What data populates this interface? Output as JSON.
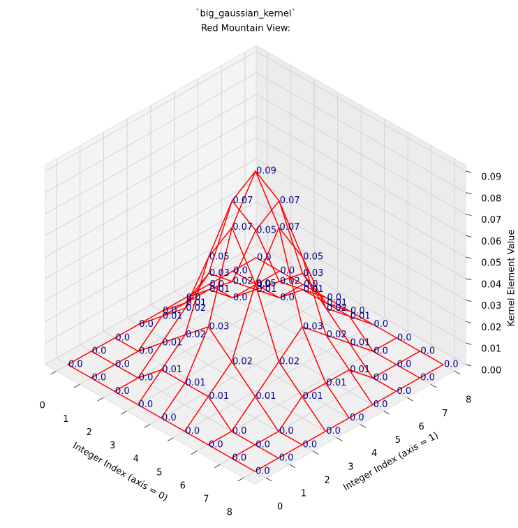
{
  "chart_data": {
    "type": "wireframe",
    "title": [
      "`big_gaussian_kernel`",
      "Red Mountain View:"
    ],
    "xlabel": "Integer Index (axis = 0)",
    "ylabel": "Integer Index (axis = 1)",
    "zlabel": "Kernel Element Value",
    "color": "#ff0000",
    "label_color": "#00008b",
    "x": [
      0,
      1,
      2,
      3,
      4,
      5,
      6,
      7,
      8
    ],
    "y": [
      0,
      1,
      2,
      3,
      4,
      5,
      6,
      7,
      8
    ],
    "z": [
      [
        0,
        0,
        0,
        0,
        0,
        0,
        0,
        0,
        0
      ],
      [
        0,
        0,
        0,
        0.01,
        0.01,
        0.01,
        0,
        0,
        0
      ],
      [
        0,
        0,
        0.01,
        0.02,
        0.03,
        0.02,
        0.01,
        0,
        0
      ],
      [
        0,
        0.01,
        0.02,
        0.05,
        0.07,
        0.05,
        0.02,
        0.01,
        0
      ],
      [
        0,
        0.01,
        0.03,
        0.07,
        0.09,
        0.07,
        0.03,
        0.01,
        0
      ],
      [
        0,
        0.01,
        0.02,
        0.05,
        0.07,
        0.05,
        0.02,
        0.01,
        0
      ],
      [
        0,
        0,
        0.01,
        0.02,
        0.03,
        0.02,
        0.01,
        0,
        0
      ],
      [
        0,
        0,
        0,
        0.01,
        0.01,
        0.01,
        0,
        0,
        0
      ],
      [
        0,
        0,
        0,
        0,
        0,
        0,
        0,
        0,
        0
      ]
    ],
    "value_labels": [
      [
        "0.0",
        "0.0",
        "0.0",
        "0.0",
        "0.0",
        "0.0",
        "0.0",
        "0.0",
        "0.0"
      ],
      [
        "0.0",
        "0.0",
        "0.0",
        "0.01",
        "0.01",
        "0.01",
        "0.0",
        "0.0",
        "0.0"
      ],
      [
        "0.0",
        "0.0",
        "0.01",
        "0.02",
        "0.03",
        "0.02",
        "0.01",
        "0.0",
        "0.0"
      ],
      [
        "0.0",
        "0.01",
        "0.02",
        "0.05",
        "0.07",
        "0.05",
        "0.02",
        "0.01",
        "0.0"
      ],
      [
        "0.0",
        "0.01",
        "0.03",
        "0.07",
        "0.09",
        "0.07",
        "0.03",
        "0.01",
        "0.0"
      ],
      [
        "0.0",
        "0.01",
        "0.02",
        "0.05",
        "0.07",
        "0.05",
        "0.02",
        "0.01",
        "0.0"
      ],
      [
        "0.0",
        "0.0",
        "0.01",
        "0.02",
        "0.03",
        "0.02",
        "0.01",
        "0.0",
        "0.0"
      ],
      [
        "0.0",
        "0.0",
        "0.0",
        "0.01",
        "0.01",
        "0.01",
        "0.0",
        "0.0",
        "0.0"
      ],
      [
        "0.0",
        "0.0",
        "0.0",
        "0.0",
        "0.0",
        "0.0",
        "0.0",
        "0.0",
        "0.0"
      ]
    ],
    "xlim": [
      0,
      8
    ],
    "ylim": [
      0,
      8
    ],
    "zlim": [
      0,
      0.09
    ],
    "xticks": [
      0,
      1,
      2,
      3,
      4,
      5,
      6,
      7,
      8
    ],
    "yticks": [
      0,
      1,
      2,
      3,
      4,
      5,
      6,
      7,
      8
    ],
    "zticks": [
      {
        "value": 0,
        "label": "0.00"
      },
      0.01,
      0.02,
      0.03,
      0.04,
      0.05,
      0.06,
      0.07,
      0.08,
      0.09
    ],
    "grid": true
  }
}
